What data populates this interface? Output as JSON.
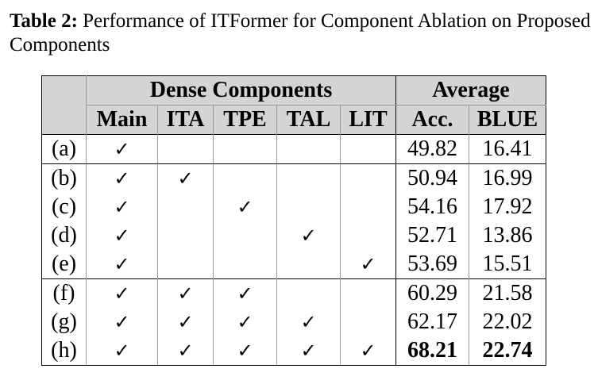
{
  "caption": {
    "label": "Table 2:",
    "text": "Performance of ITFormer for Component Ablation on Proposed Components"
  },
  "table": {
    "group_headers": {
      "dense": "Dense Components",
      "average": "Average"
    },
    "columns": {
      "main": "Main",
      "ita": "ITA",
      "tpe": "TPE",
      "tal": "TAL",
      "lit": "LIT",
      "acc": "Acc.",
      "blue": "BLUE"
    },
    "check_symbol": "✓",
    "rows": [
      {
        "label": "(a)",
        "main": "✓",
        "ita": "",
        "tpe": "",
        "tal": "",
        "lit": "",
        "acc": "49.82",
        "blue": "16.41"
      },
      {
        "label": "(b)",
        "main": "✓",
        "ita": "✓",
        "tpe": "",
        "tal": "",
        "lit": "",
        "acc": "50.94",
        "blue": "16.99"
      },
      {
        "label": "(c)",
        "main": "✓",
        "ita": "",
        "tpe": "✓",
        "tal": "",
        "lit": "",
        "acc": "54.16",
        "blue": "17.92"
      },
      {
        "label": "(d)",
        "main": "✓",
        "ita": "",
        "tpe": "",
        "tal": "✓",
        "lit": "",
        "acc": "52.71",
        "blue": "13.86"
      },
      {
        "label": "(e)",
        "main": "✓",
        "ita": "",
        "tpe": "",
        "tal": "",
        "lit": "✓",
        "acc": "53.69",
        "blue": "15.51"
      },
      {
        "label": "(f)",
        "main": "✓",
        "ita": "✓",
        "tpe": "✓",
        "tal": "",
        "lit": "",
        "acc": "60.29",
        "blue": "21.58"
      },
      {
        "label": "(g)",
        "main": "✓",
        "ita": "✓",
        "tpe": "✓",
        "tal": "✓",
        "lit": "",
        "acc": "62.17",
        "blue": "22.02"
      },
      {
        "label": "(h)",
        "main": "✓",
        "ita": "✓",
        "tpe": "✓",
        "tal": "✓",
        "lit": "✓",
        "acc": "68.21",
        "blue": "22.74"
      }
    ]
  }
}
